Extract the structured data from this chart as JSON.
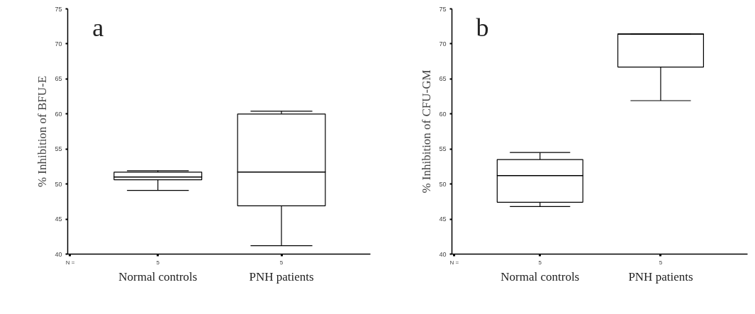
{
  "chart_data": [
    {
      "type": "box",
      "title": "a",
      "ylabel": "% Inhibition of BFU-E",
      "categories": [
        "Normal controls",
        "PNH patients"
      ],
      "boxes": [
        {
          "low": 49.1,
          "q1": 50.6,
          "median": 51.0,
          "q3": 51.7,
          "high": 51.9
        },
        {
          "low": 41.2,
          "q1": 46.9,
          "median": 51.7,
          "q3": 60.0,
          "high": 60.4
        }
      ],
      "ylim": [
        40,
        75
      ],
      "yticks": [
        40,
        45,
        50,
        55,
        60,
        65,
        70,
        75
      ],
      "grid": false,
      "annotations": [
        "N =",
        "5",
        "5"
      ]
    },
    {
      "type": "box",
      "title": "b",
      "ylabel": "% Inhibition of CFU-GM",
      "categories": [
        "Normal controls",
        "PNH patients"
      ],
      "boxes": [
        {
          "low": 46.8,
          "q1": 47.4,
          "median": 51.2,
          "q3": 53.5,
          "high": 54.5
        },
        {
          "low": 61.9,
          "q1": 66.7,
          "median": 71.4,
          "q3": 71.4,
          "high": 71.4
        }
      ],
      "ylim": [
        40,
        75
      ],
      "yticks": [
        40,
        45,
        50,
        55,
        60,
        65,
        70,
        75
      ],
      "grid": false,
      "annotations": [
        "N =",
        "5",
        "5"
      ]
    }
  ]
}
